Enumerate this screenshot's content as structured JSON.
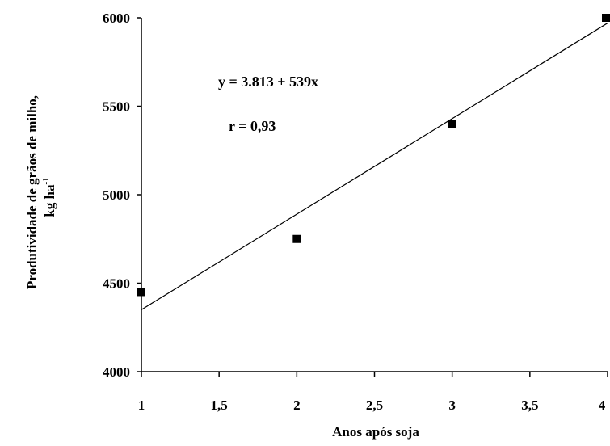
{
  "chart_data": {
    "type": "scatter",
    "title": "",
    "xlabel": "Anos após soja",
    "ylabel_line1": "Produtividade de grãos de milho,",
    "ylabel_line2_main": "kg ha",
    "ylabel_line2_sup": "-1",
    "xlim": [
      1,
      4
    ],
    "ylim": [
      4000,
      6000
    ],
    "xticks": [
      1,
      1.5,
      2,
      2.5,
      3,
      3.5,
      4
    ],
    "xtick_labels": [
      "1",
      "1,5",
      "2",
      "2,5",
      "3",
      "3,5",
      "4"
    ],
    "yticks": [
      4000,
      4500,
      5000,
      5500,
      6000
    ],
    "ytick_labels": [
      "4000",
      "4500",
      "5000",
      "5500",
      "6000"
    ],
    "points": [
      {
        "x": 1,
        "y": 4450
      },
      {
        "x": 2,
        "y": 4750
      },
      {
        "x": 3,
        "y": 5400
      },
      {
        "x": 4,
        "y": 6000
      }
    ],
    "trendline": {
      "type": "linear",
      "x_start": 1,
      "y_start": 4350,
      "x_end": 4,
      "y_end": 5970
    },
    "annotations": {
      "equation": "y = 3.813 + 539x",
      "r": "r = 0,93"
    },
    "grid": false
  }
}
